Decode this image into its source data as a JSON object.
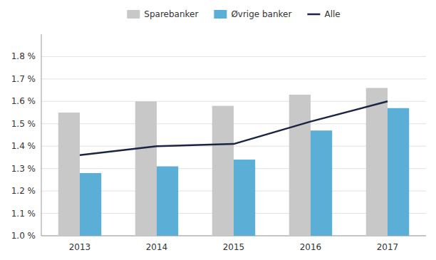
{
  "chart_data": {
    "type": "bar",
    "categories": [
      "2013",
      "2014",
      "2015",
      "2016",
      "2017"
    ],
    "series": [
      {
        "name": "Sparebanker",
        "type": "bar",
        "color": "#c8c8c8",
        "values": [
          0.0155,
          0.016,
          0.0158,
          0.0163,
          0.0166
        ]
      },
      {
        "name": "Øvrige banker",
        "type": "bar",
        "color": "#5bafd6",
        "values": [
          0.0128,
          0.0131,
          0.0134,
          0.0147,
          0.0157
        ]
      },
      {
        "name": "Alle",
        "type": "line",
        "color": "#1a2444",
        "values": [
          0.0136,
          0.014,
          0.0141,
          0.0151,
          0.016
        ]
      }
    ],
    "ylim": [
      0.01,
      0.019
    ],
    "yticks": [
      {
        "value": 0.01,
        "label": "1.0 %"
      },
      {
        "value": 0.011,
        "label": "1.1 %"
      },
      {
        "value": 0.012,
        "label": "1.2 %"
      },
      {
        "value": 0.013,
        "label": "1.3 %"
      },
      {
        "value": 0.014,
        "label": "1.4 %"
      },
      {
        "value": 0.015,
        "label": "1.5 %"
      },
      {
        "value": 0.016,
        "label": "1.6 %"
      },
      {
        "value": 0.017,
        "label": "1.7 %"
      },
      {
        "value": 0.018,
        "label": "1.8 %"
      }
    ],
    "grid": true,
    "legend": "top"
  }
}
